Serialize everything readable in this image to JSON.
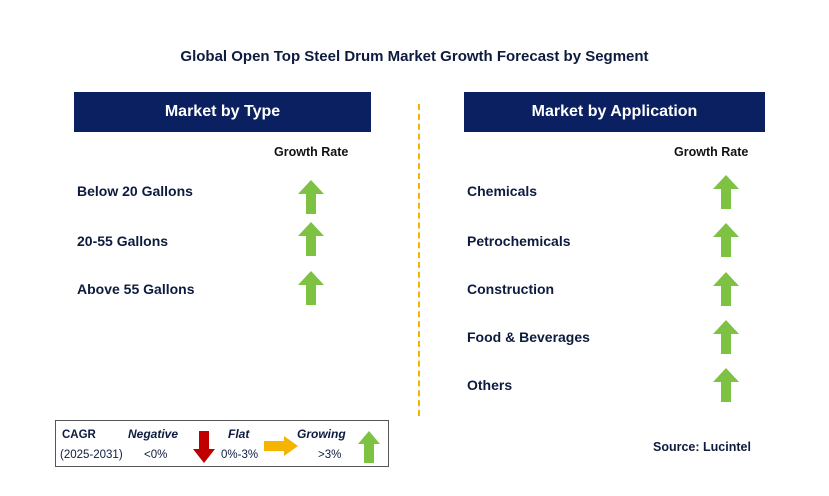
{
  "title": "Global Open Top Steel Drum Market Growth Forecast by Segment",
  "type_panel": {
    "header": "Market by Type",
    "growth_label": "Growth Rate",
    "items": [
      "Below 20 Gallons",
      "20-55 Gallons",
      "Above 55 Gallons"
    ],
    "trend": [
      "growing",
      "growing",
      "growing"
    ]
  },
  "application_panel": {
    "header": "Market by Application",
    "growth_label": "Growth Rate",
    "items": [
      "Chemicals",
      "Petrochemicals",
      "Construction",
      "Food & Beverages",
      "Others"
    ],
    "trend": [
      "growing",
      "growing",
      "growing",
      "growing",
      "growing"
    ]
  },
  "legend": {
    "cagr_label": "CAGR",
    "period": "(2025-2031)",
    "negative_label": "Negative",
    "negative_value": "<0%",
    "flat_label": "Flat",
    "flat_value": "0%-3%",
    "growing_label": "Growing",
    "growing_value": ">3%"
  },
  "source": "Source: Lucintel",
  "colors": {
    "header_bg": "#0b2060",
    "growing": "#7dc242",
    "negative": "#c00000",
    "flat": "#f4b400"
  },
  "icons": {
    "growing": "green-up-arrow-icon",
    "negative": "red-down-arrow-icon",
    "flat": "yellow-right-arrow-icon"
  }
}
